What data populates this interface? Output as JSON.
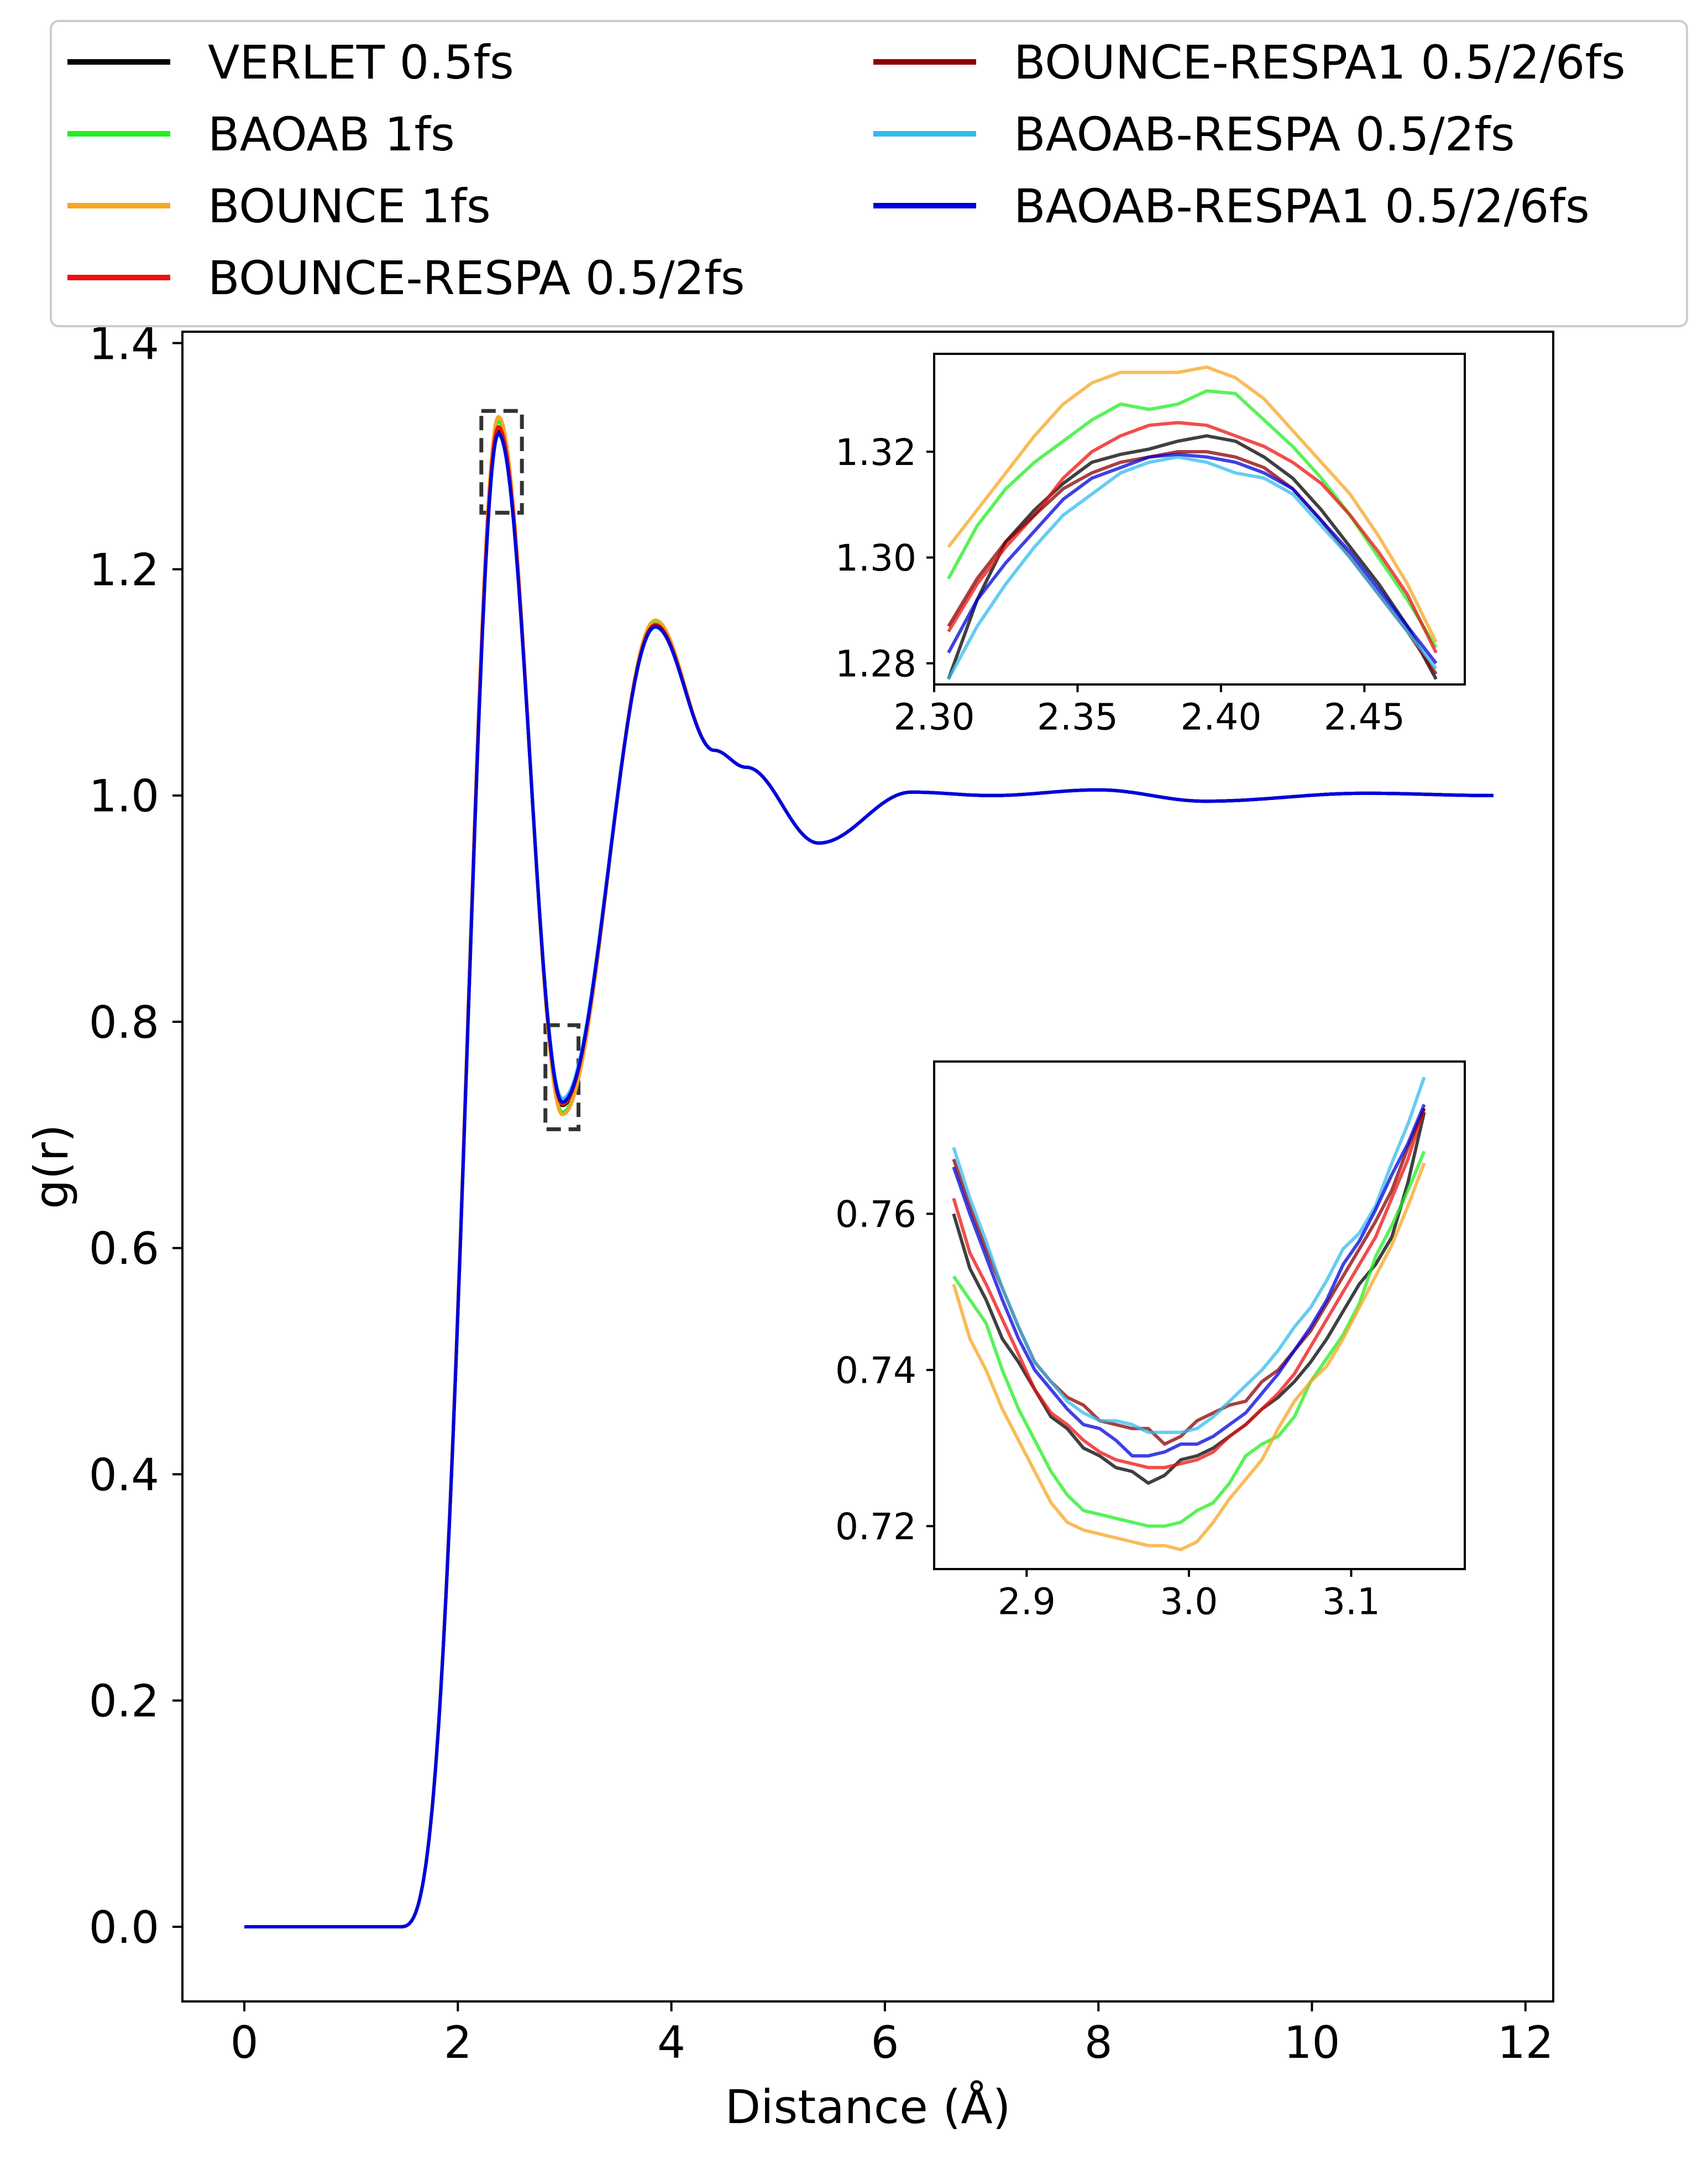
{
  "chart_data": [
    {
      "id": "main",
      "type": "line",
      "xlabel": "Distance (Å)",
      "ylabel": "g(r)",
      "xlim": [
        -0.58,
        12.26
      ],
      "ylim": [
        -0.066,
        1.41
      ],
      "xticks": [
        0,
        2,
        4,
        6,
        8,
        10,
        12
      ],
      "xtick_labels": [
        "0",
        "2",
        "4",
        "6",
        "8",
        "10",
        "12"
      ],
      "yticks": [
        0.0,
        0.2,
        0.4,
        0.6,
        0.8,
        1.0,
        1.2,
        1.4
      ],
      "ytick_labels": [
        "0.0",
        "0.2",
        "0.4",
        "0.6",
        "0.8",
        "1.0",
        "1.2",
        "1.4"
      ],
      "grid": false,
      "legend_position": "top (above plot), two columns",
      "series": [
        {
          "name": "VERLET 0.5fs",
          "color": "#000000",
          "peak1": 1.322,
          "min1": 0.726,
          "peak2": 1.15
        },
        {
          "name": "BAOAB 1fs",
          "color": "#22ee22",
          "peak1": 1.331,
          "min1": 0.72,
          "peak2": 1.154
        },
        {
          "name": "BOUNCE 1fs",
          "color": "#f5a623",
          "peak1": 1.335,
          "min1": 0.718,
          "peak2": 1.155
        },
        {
          "name": "BOUNCE-RESPA 0.5/2fs",
          "color": "#ee1111",
          "peak1": 1.326,
          "min1": 0.727,
          "peak2": 1.151
        },
        {
          "name": "BOUNCE-RESPA1 0.5/2/6fs",
          "color": "#8b0000",
          "peak1": 1.32,
          "min1": 0.731,
          "peak2": 1.15
        },
        {
          "name": "BAOAB-RESPA 0.5/2fs",
          "color": "#33bbee",
          "peak1": 1.319,
          "min1": 0.732,
          "peak2": 1.149
        },
        {
          "name": "BAOAB-RESPA1 0.5/2/6fs",
          "color": "#0000dd",
          "peak1": 1.32,
          "min1": 0.729,
          "peak2": 1.149
        }
      ],
      "features": [
        {
          "x": 1.5,
          "y": 0.0
        },
        {
          "x": 2.38,
          "y": 1.322
        },
        {
          "x": 2.98,
          "y": 0.727
        },
        {
          "x": 3.85,
          "y": 1.15
        },
        {
          "x": 4.4,
          "y": 1.04
        },
        {
          "x": 4.7,
          "y": 1.025
        },
        {
          "x": 5.38,
          "y": 0.958
        },
        {
          "x": 6.25,
          "y": 1.003
        },
        {
          "x": 7.0,
          "y": 1.0
        },
        {
          "x": 8.0,
          "y": 1.005
        },
        {
          "x": 9.0,
          "y": 0.995
        },
        {
          "x": 10.5,
          "y": 1.002
        },
        {
          "x": 11.7,
          "y": 1.0
        }
      ],
      "zoom_boxes": [
        {
          "x": [
            2.22,
            2.6
          ],
          "y": [
            1.25,
            1.34
          ]
        },
        {
          "x": [
            2.82,
            3.13
          ],
          "y": [
            0.705,
            0.797
          ]
        }
      ]
    },
    {
      "id": "inset-peak",
      "type": "line",
      "xlim": [
        2.3,
        2.485
      ],
      "ylim": [
        1.276,
        1.3385
      ],
      "xticks": [
        2.3,
        2.35,
        2.4,
        2.45
      ],
      "xtick_labels": [
        "2.30",
        "2.35",
        "2.40",
        "2.45"
      ],
      "yticks": [
        1.28,
        1.3,
        1.32
      ],
      "ytick_labels": [
        "1.28",
        "1.30",
        "1.32"
      ],
      "x": [
        2.305,
        2.315,
        2.325,
        2.335,
        2.345,
        2.355,
        2.365,
        2.375,
        2.385,
        2.395,
        2.405,
        2.415,
        2.425,
        2.435,
        2.445,
        2.455,
        2.465,
        2.475
      ],
      "series": [
        {
          "name": "VERLET 0.5fs",
          "values": [
            1.277,
            1.292,
            1.303,
            1.309,
            1.314,
            1.318,
            1.3195,
            1.3205,
            1.322,
            1.323,
            1.322,
            1.319,
            1.315,
            1.309,
            1.302,
            1.295,
            1.287,
            1.277
          ]
        },
        {
          "name": "BAOAB 1fs",
          "values": [
            1.296,
            1.306,
            1.313,
            1.318,
            1.322,
            1.326,
            1.329,
            1.328,
            1.329,
            1.3315,
            1.331,
            1.326,
            1.321,
            1.315,
            1.308,
            1.3,
            1.292,
            1.283
          ]
        },
        {
          "name": "BOUNCE 1fs",
          "values": [
            1.302,
            1.309,
            1.316,
            1.323,
            1.329,
            1.333,
            1.335,
            1.335,
            1.335,
            1.336,
            1.334,
            1.33,
            1.324,
            1.318,
            1.312,
            1.304,
            1.295,
            1.284
          ]
        },
        {
          "name": "BOUNCE-RESPA 0.5/2fs",
          "values": [
            1.286,
            1.295,
            1.302,
            1.308,
            1.315,
            1.32,
            1.323,
            1.325,
            1.3255,
            1.325,
            1.323,
            1.321,
            1.318,
            1.314,
            1.308,
            1.301,
            1.293,
            1.282
          ]
        },
        {
          "name": "BOUNCE-RESPA1 0.5/2/6fs",
          "values": [
            1.287,
            1.296,
            1.303,
            1.308,
            1.313,
            1.316,
            1.318,
            1.319,
            1.32,
            1.32,
            1.319,
            1.317,
            1.313,
            1.307,
            1.3,
            1.293,
            1.286,
            1.278
          ]
        },
        {
          "name": "BAOAB-RESPA 0.5/2fs",
          "values": [
            1.277,
            1.287,
            1.295,
            1.302,
            1.308,
            1.312,
            1.316,
            1.318,
            1.319,
            1.318,
            1.316,
            1.315,
            1.312,
            1.306,
            1.3,
            1.293,
            1.286,
            1.279
          ]
        },
        {
          "name": "BAOAB-RESPA1 0.5/2/6fs",
          "values": [
            1.282,
            1.292,
            1.299,
            1.305,
            1.311,
            1.315,
            1.317,
            1.319,
            1.3195,
            1.319,
            1.318,
            1.316,
            1.313,
            1.307,
            1.301,
            1.294,
            1.287,
            1.28
          ]
        }
      ]
    },
    {
      "id": "inset-min",
      "type": "line",
      "xlim": [
        2.843,
        3.17
      ],
      "ylim": [
        0.7145,
        0.7795
      ],
      "xticks": [
        2.9,
        3.0,
        3.1
      ],
      "xtick_labels": [
        "2.9",
        "3.0",
        "3.1"
      ],
      "yticks": [
        0.72,
        0.74,
        0.76
      ],
      "ytick_labels": [
        "0.72",
        "0.74",
        "0.76"
      ],
      "x": [
        2.855,
        2.865,
        2.875,
        2.885,
        2.895,
        2.905,
        2.915,
        2.925,
        2.935,
        2.945,
        2.955,
        2.965,
        2.975,
        2.985,
        2.995,
        3.005,
        3.015,
        3.025,
        3.035,
        3.045,
        3.055,
        3.065,
        3.075,
        3.085,
        3.095,
        3.105,
        3.115,
        3.125,
        3.135,
        3.145
      ],
      "series": [
        {
          "name": "VERLET 0.5fs",
          "values": [
            0.76,
            0.753,
            0.749,
            0.744,
            0.741,
            0.7375,
            0.734,
            0.7325,
            0.73,
            0.729,
            0.7275,
            0.727,
            0.7255,
            0.7265,
            0.7285,
            0.729,
            0.73,
            0.7315,
            0.733,
            0.735,
            0.7365,
            0.7385,
            0.741,
            0.744,
            0.7475,
            0.751,
            0.7535,
            0.757,
            0.764,
            0.773
          ]
        },
        {
          "name": "BAOAB 1fs",
          "values": [
            0.752,
            0.749,
            0.746,
            0.74,
            0.735,
            0.731,
            0.727,
            0.724,
            0.722,
            0.7215,
            0.721,
            0.7205,
            0.72,
            0.72,
            0.7205,
            0.722,
            0.723,
            0.7255,
            0.729,
            0.7305,
            0.7315,
            0.734,
            0.7385,
            0.7415,
            0.7445,
            0.7485,
            0.7545,
            0.7585,
            0.763,
            0.768
          ]
        },
        {
          "name": "BOUNCE 1fs",
          "values": [
            0.751,
            0.744,
            0.74,
            0.735,
            0.731,
            0.727,
            0.723,
            0.7205,
            0.7195,
            0.719,
            0.7185,
            0.718,
            0.7175,
            0.7175,
            0.717,
            0.718,
            0.7205,
            0.7235,
            0.726,
            0.7285,
            0.7325,
            0.736,
            0.7385,
            0.7405,
            0.744,
            0.748,
            0.752,
            0.756,
            0.761,
            0.7665
          ]
        },
        {
          "name": "BOUNCE-RESPA 0.5/2fs",
          "values": [
            0.762,
            0.755,
            0.751,
            0.7465,
            0.742,
            0.7375,
            0.7345,
            0.733,
            0.731,
            0.7295,
            0.7285,
            0.728,
            0.7275,
            0.7275,
            0.728,
            0.7285,
            0.7295,
            0.7315,
            0.733,
            0.735,
            0.737,
            0.7395,
            0.743,
            0.7465,
            0.75,
            0.7535,
            0.757,
            0.762,
            0.767,
            0.7735
          ]
        },
        {
          "name": "BOUNCE-RESPA1 0.5/2/6fs",
          "values": [
            0.767,
            0.761,
            0.7555,
            0.7505,
            0.7455,
            0.741,
            0.7385,
            0.7365,
            0.7355,
            0.7335,
            0.733,
            0.7325,
            0.7325,
            0.7305,
            0.7315,
            0.7335,
            0.7345,
            0.7355,
            0.736,
            0.7385,
            0.74,
            0.7425,
            0.745,
            0.7485,
            0.752,
            0.7555,
            0.759,
            0.763,
            0.7685,
            0.7735
          ]
        },
        {
          "name": "BAOAB-RESPA 0.5/2fs",
          "values": [
            0.7685,
            0.762,
            0.7565,
            0.7505,
            0.7455,
            0.741,
            0.7385,
            0.736,
            0.7345,
            0.7335,
            0.7335,
            0.733,
            0.732,
            0.732,
            0.732,
            0.7325,
            0.734,
            0.736,
            0.738,
            0.74,
            0.7425,
            0.7455,
            0.748,
            0.7515,
            0.7555,
            0.7575,
            0.761,
            0.7665,
            0.7715,
            0.7775
          ]
        },
        {
          "name": "BAOAB-RESPA1 0.5/2/6fs",
          "values": [
            0.766,
            0.76,
            0.7545,
            0.749,
            0.744,
            0.74,
            0.7375,
            0.735,
            0.733,
            0.7325,
            0.731,
            0.729,
            0.729,
            0.7295,
            0.7305,
            0.7305,
            0.7315,
            0.733,
            0.7345,
            0.737,
            0.7395,
            0.7425,
            0.7455,
            0.749,
            0.7535,
            0.7565,
            0.7605,
            0.765,
            0.769,
            0.774
          ]
        }
      ]
    }
  ]
}
